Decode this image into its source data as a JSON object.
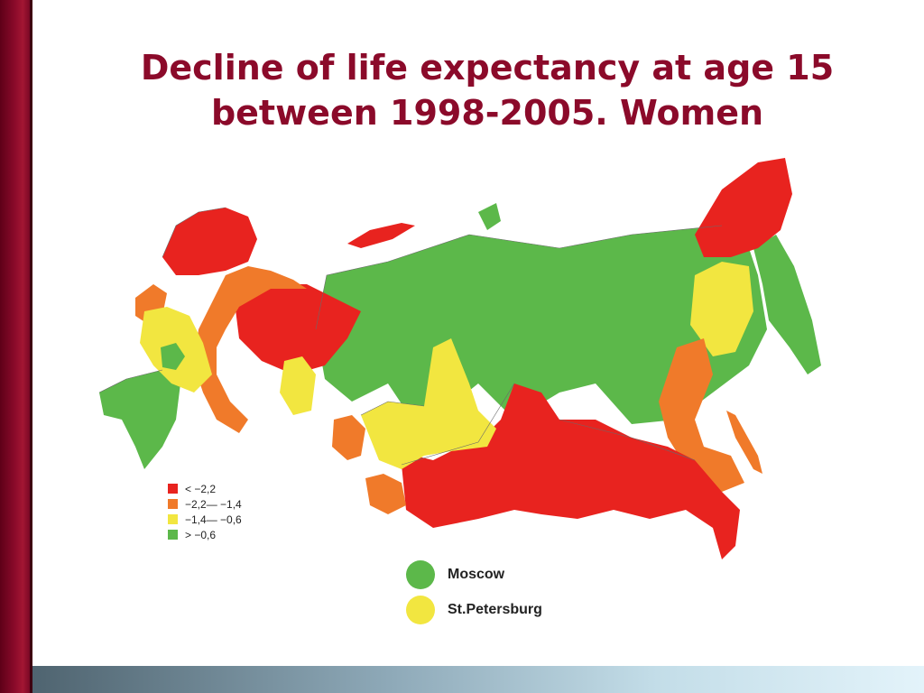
{
  "slide": {
    "title_line1": "Decline of life expectancy at age 15",
    "title_line2": "between 1998-2005. Women"
  },
  "legend": [
    {
      "label": "< −2,2",
      "color": "#e8231f",
      "range": "less than -2.2"
    },
    {
      "label": "−2,2— −1,4",
      "color": "#f07a2a",
      "range": "-2.2 to -1.4"
    },
    {
      "label": "−1,4— −0,6",
      "color": "#f2e640",
      "range": "-1.4 to -0.6"
    },
    {
      "label": "> −0,6",
      "color": "#5cb84a",
      "range": "greater than -0.6"
    }
  ],
  "cities": [
    {
      "name": "Moscow",
      "color": "#5cb84a",
      "category": "> −0,6"
    },
    {
      "name": "St.Petersburg",
      "color": "#f2e640",
      "category": "−1,4— −0,6"
    }
  ],
  "colors": {
    "accent": "#8b0a2a",
    "red": "#e8231f",
    "orange": "#f07a2a",
    "yellow": "#f2e640",
    "green": "#5cb84a"
  }
}
